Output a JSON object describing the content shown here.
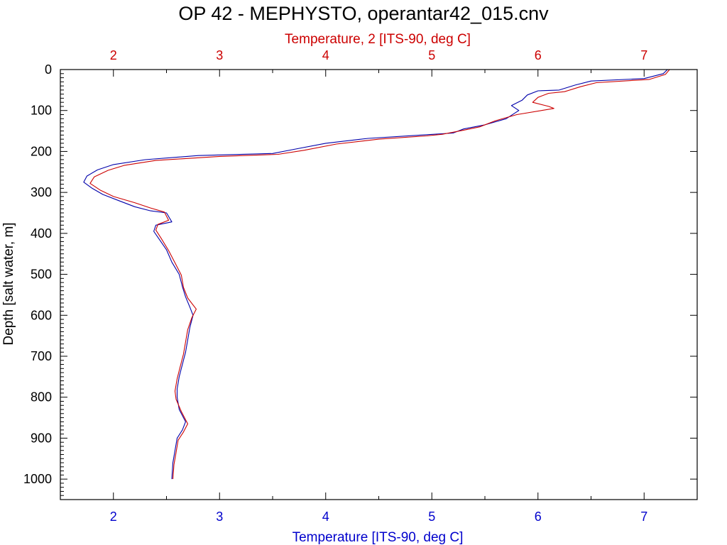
{
  "chart_data": {
    "type": "line",
    "title": "OP 42 - MEPHYSTO, operantar42_015.cnv",
    "ylabel": "Depth [salt water, m]",
    "xlabel_bottom": "Temperature [ITS-90, deg C]",
    "xlabel_top": "Temperature, 2 [ITS-90, deg C]",
    "ylim": [
      0,
      1050
    ],
    "y_inverted": true,
    "xlim": [
      1.5,
      7.5
    ],
    "y_ticks": [
      0,
      100,
      200,
      300,
      400,
      500,
      600,
      700,
      800,
      900,
      1000
    ],
    "y_tick_labels": [
      "0",
      "100",
      "200",
      "300",
      "400",
      "500",
      "600",
      "700",
      "800",
      "900",
      "1000"
    ],
    "x_ticks": [
      2,
      3,
      4,
      5,
      6,
      7
    ],
    "x_tick_labels_bottom": [
      "2",
      "3",
      "4",
      "5",
      "6",
      "7"
    ],
    "x_tick_labels_top": [
      "2",
      "3",
      "4",
      "5",
      "6",
      "7"
    ],
    "grid": false,
    "colors": {
      "primary_axis": "#0000cc",
      "secondary_axis": "#cc0000",
      "frame": "#000000"
    },
    "series": [
      {
        "color": "#0000aa",
        "axis": "bottom",
        "points": [
          [
            7.22,
            0
          ],
          [
            7.18,
            10
          ],
          [
            7.0,
            22
          ],
          [
            6.5,
            28
          ],
          [
            6.35,
            38
          ],
          [
            6.2,
            50
          ],
          [
            6.0,
            52
          ],
          [
            5.9,
            62
          ],
          [
            5.85,
            75
          ],
          [
            5.75,
            88
          ],
          [
            5.82,
            100
          ],
          [
            5.7,
            120
          ],
          [
            5.5,
            135
          ],
          [
            5.3,
            145
          ],
          [
            5.2,
            155
          ],
          [
            4.9,
            160
          ],
          [
            4.4,
            168
          ],
          [
            4.0,
            180
          ],
          [
            3.7,
            195
          ],
          [
            3.5,
            205
          ],
          [
            2.8,
            210
          ],
          [
            2.3,
            220
          ],
          [
            2.0,
            232
          ],
          [
            1.85,
            245
          ],
          [
            1.75,
            260
          ],
          [
            1.72,
            275
          ],
          [
            1.8,
            290
          ],
          [
            1.9,
            305
          ],
          [
            2.05,
            320
          ],
          [
            2.2,
            335
          ],
          [
            2.35,
            345
          ],
          [
            2.5,
            350
          ],
          [
            2.55,
            372
          ],
          [
            2.4,
            380
          ],
          [
            2.38,
            395
          ],
          [
            2.42,
            410
          ],
          [
            2.5,
            440
          ],
          [
            2.55,
            470
          ],
          [
            2.62,
            500
          ],
          [
            2.65,
            530
          ],
          [
            2.68,
            555
          ],
          [
            2.72,
            580
          ],
          [
            2.75,
            600
          ],
          [
            2.72,
            630
          ],
          [
            2.7,
            660
          ],
          [
            2.68,
            690
          ],
          [
            2.65,
            720
          ],
          [
            2.62,
            750
          ],
          [
            2.6,
            780
          ],
          [
            2.6,
            800
          ],
          [
            2.62,
            830
          ],
          [
            2.68,
            860
          ],
          [
            2.65,
            880
          ],
          [
            2.6,
            900
          ],
          [
            2.58,
            930
          ],
          [
            2.56,
            960
          ],
          [
            2.55,
            1000
          ]
        ]
      },
      {
        "color": "#cc0000",
        "axis": "top",
        "points": [
          [
            7.24,
            0
          ],
          [
            7.2,
            12
          ],
          [
            7.05,
            24
          ],
          [
            6.55,
            32
          ],
          [
            6.4,
            42
          ],
          [
            6.25,
            54
          ],
          [
            6.1,
            58
          ],
          [
            6.0,
            68
          ],
          [
            5.95,
            80
          ],
          [
            6.1,
            90
          ],
          [
            6.15,
            95
          ],
          [
            5.8,
            110
          ],
          [
            5.6,
            125
          ],
          [
            5.45,
            140
          ],
          [
            5.3,
            148
          ],
          [
            5.1,
            158
          ],
          [
            4.95,
            162
          ],
          [
            4.5,
            170
          ],
          [
            4.1,
            182
          ],
          [
            3.8,
            197
          ],
          [
            3.55,
            207
          ],
          [
            3.0,
            212
          ],
          [
            2.4,
            222
          ],
          [
            2.1,
            234
          ],
          [
            1.95,
            246
          ],
          [
            1.82,
            262
          ],
          [
            1.78,
            278
          ],
          [
            1.88,
            295
          ],
          [
            2.0,
            310
          ],
          [
            2.2,
            325
          ],
          [
            2.35,
            338
          ],
          [
            2.48,
            348
          ],
          [
            2.52,
            368
          ],
          [
            2.42,
            378
          ],
          [
            2.4,
            392
          ],
          [
            2.45,
            412
          ],
          [
            2.52,
            442
          ],
          [
            2.58,
            472
          ],
          [
            2.64,
            502
          ],
          [
            2.66,
            532
          ],
          [
            2.7,
            558
          ],
          [
            2.78,
            585
          ],
          [
            2.74,
            605
          ],
          [
            2.7,
            635
          ],
          [
            2.68,
            665
          ],
          [
            2.66,
            695
          ],
          [
            2.63,
            725
          ],
          [
            2.6,
            755
          ],
          [
            2.58,
            785
          ],
          [
            2.59,
            805
          ],
          [
            2.64,
            835
          ],
          [
            2.7,
            865
          ],
          [
            2.66,
            885
          ],
          [
            2.61,
            905
          ],
          [
            2.59,
            935
          ],
          [
            2.57,
            965
          ],
          [
            2.56,
            1000
          ]
        ]
      }
    ]
  }
}
